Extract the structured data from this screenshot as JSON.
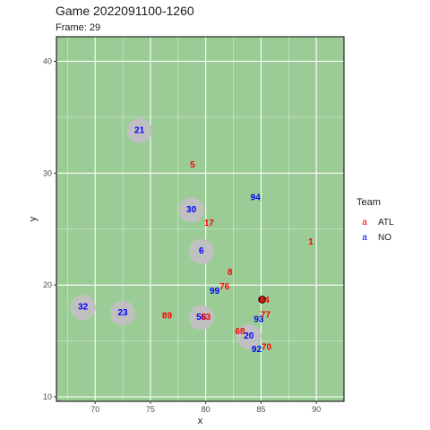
{
  "chart_data": {
    "type": "scatter",
    "title": "Game 2022091100-1260",
    "subtitle": "Frame: 29",
    "xlabel": "x",
    "ylabel": "y",
    "xlim": [
      66.5,
      92.5
    ],
    "ylim": [
      9.6,
      42.2
    ],
    "x_ticks": [
      70,
      75,
      80,
      85,
      90
    ],
    "y_ticks": [
      10,
      20,
      30,
      40
    ],
    "grid": true,
    "background_color": "#9ccc96",
    "legend": {
      "title": "Team",
      "placement": "right",
      "entries": [
        {
          "team": "ATL",
          "glyph": "a",
          "color": "#ff0000"
        },
        {
          "team": "NO",
          "glyph": "a",
          "color": "#0000ff"
        }
      ]
    },
    "football": {
      "x": 85.1,
      "y": 18.7
    },
    "players": [
      {
        "label": "21",
        "team": "NO",
        "x": 74.0,
        "y": 33.8,
        "circled": true
      },
      {
        "label": "30",
        "team": "NO",
        "x": 78.7,
        "y": 26.7,
        "circled": true
      },
      {
        "label": "6",
        "team": "NO",
        "x": 79.6,
        "y": 23.0,
        "circled": true
      },
      {
        "label": "32",
        "team": "NO",
        "x": 68.9,
        "y": 18.0,
        "circled": true
      },
      {
        "label": "23",
        "team": "NO",
        "x": 72.5,
        "y": 17.5,
        "circled": true
      },
      {
        "label": "56",
        "team": "NO",
        "x": 79.6,
        "y": 17.1,
        "circled": true
      },
      {
        "label": "20",
        "team": "NO",
        "x": 83.9,
        "y": 15.4,
        "circled": true
      },
      {
        "label": "94",
        "team": "NO",
        "x": 84.5,
        "y": 27.8,
        "circled": false
      },
      {
        "label": "99",
        "team": "NO",
        "x": 80.8,
        "y": 19.4,
        "circled": false
      },
      {
        "label": "93",
        "team": "NO",
        "x": 84.8,
        "y": 16.9,
        "circled": false
      },
      {
        "label": "92",
        "team": "NO",
        "x": 84.6,
        "y": 14.2,
        "circled": false
      },
      {
        "label": "5",
        "team": "ATL",
        "x": 78.8,
        "y": 30.7,
        "circled": false
      },
      {
        "label": "17",
        "team": "ATL",
        "x": 80.3,
        "y": 25.5,
        "circled": false
      },
      {
        "label": "1",
        "team": "ATL",
        "x": 89.5,
        "y": 23.8,
        "circled": false
      },
      {
        "label": "8",
        "team": "ATL",
        "x": 82.2,
        "y": 21.1,
        "circled": false
      },
      {
        "label": "76",
        "team": "ATL",
        "x": 81.7,
        "y": 19.8,
        "circled": false
      },
      {
        "label": "84",
        "team": "ATL",
        "x": 85.3,
        "y": 18.6,
        "circled": false
      },
      {
        "label": "77",
        "team": "ATL",
        "x": 85.4,
        "y": 17.3,
        "circled": false
      },
      {
        "label": "89",
        "team": "ATL",
        "x": 76.5,
        "y": 17.2,
        "circled": false
      },
      {
        "label": "53",
        "team": "ATL",
        "x": 80.0,
        "y": 17.1,
        "circled": false
      },
      {
        "label": "68",
        "team": "ATL",
        "x": 83.1,
        "y": 15.8,
        "circled": false
      },
      {
        "label": "70",
        "team": "ATL",
        "x": 85.5,
        "y": 14.4,
        "circled": false
      }
    ]
  }
}
